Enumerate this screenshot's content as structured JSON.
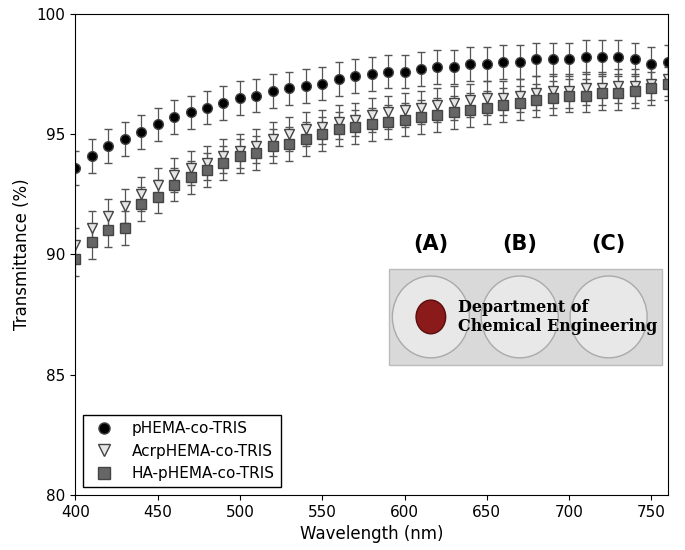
{
  "chart_data": {
    "type": "scatter",
    "x_label": "Wavelength (nm)",
    "y_label": "Transmittance (%)",
    "x": [
      400,
      410,
      420,
      430,
      440,
      450,
      460,
      470,
      480,
      490,
      500,
      510,
      520,
      530,
      540,
      550,
      560,
      570,
      580,
      590,
      600,
      610,
      620,
      630,
      640,
      650,
      660,
      670,
      680,
      690,
      700,
      710,
      720,
      730,
      740,
      750,
      760
    ],
    "series": [
      {
        "name": "pHEMA-co-TRIS",
        "color": "#000000",
        "marker": "circle",
        "values": [
          93.6,
          94.1,
          94.5,
          94.8,
          95.1,
          95.4,
          95.7,
          95.9,
          96.1,
          96.3,
          96.5,
          96.6,
          96.8,
          96.9,
          97.0,
          97.1,
          97.3,
          97.4,
          97.5,
          97.6,
          97.6,
          97.7,
          97.8,
          97.8,
          97.9,
          97.9,
          98.0,
          98.0,
          98.1,
          98.1,
          98.1,
          98.2,
          98.2,
          98.2,
          98.1,
          97.9,
          98.0
        ],
        "errors": [
          0.7,
          0.7,
          0.7,
          0.7,
          0.7,
          0.7,
          0.7,
          0.7,
          0.7,
          0.7,
          0.7,
          0.7,
          0.7,
          0.7,
          0.7,
          0.7,
          0.7,
          0.7,
          0.7,
          0.7,
          0.7,
          0.7,
          0.7,
          0.7,
          0.7,
          0.7,
          0.7,
          0.7,
          0.7,
          0.7,
          0.7,
          0.7,
          0.7,
          0.7,
          0.7,
          0.7,
          0.7
        ]
      },
      {
        "name": "AcrpHEMA-co-TRIS",
        "color": "#e6e6e6",
        "marker": "triangle_down",
        "values": [
          90.4,
          91.1,
          91.6,
          92.0,
          92.5,
          92.9,
          93.3,
          93.6,
          93.8,
          94.1,
          94.3,
          94.5,
          94.8,
          95.0,
          95.2,
          95.3,
          95.5,
          95.6,
          95.8,
          95.9,
          96.0,
          96.1,
          96.2,
          96.3,
          96.4,
          96.5,
          96.5,
          96.6,
          96.7,
          96.8,
          96.8,
          96.9,
          96.9,
          97.0,
          97.0,
          97.1,
          97.3
        ],
        "errors": [
          0.7,
          0.7,
          0.7,
          0.7,
          0.7,
          0.7,
          0.7,
          0.7,
          0.7,
          0.7,
          0.7,
          0.7,
          0.7,
          0.7,
          0.7,
          0.7,
          0.7,
          0.7,
          0.7,
          0.7,
          0.7,
          0.7,
          0.7,
          0.7,
          0.7,
          0.7,
          0.7,
          0.7,
          0.7,
          0.7,
          0.7,
          0.7,
          0.7,
          0.7,
          0.7,
          0.7,
          0.7
        ]
      },
      {
        "name": "HA-pHEMA-co-TRIS",
        "color": "#666666",
        "marker": "square",
        "values": [
          89.8,
          90.5,
          91.0,
          91.1,
          92.1,
          92.4,
          92.9,
          93.2,
          93.5,
          93.8,
          94.1,
          94.2,
          94.5,
          94.6,
          94.8,
          95.0,
          95.2,
          95.3,
          95.4,
          95.5,
          95.6,
          95.7,
          95.8,
          95.9,
          96.0,
          96.1,
          96.2,
          96.3,
          96.4,
          96.5,
          96.6,
          96.6,
          96.7,
          96.7,
          96.8,
          96.9,
          97.1
        ],
        "errors": [
          0.7,
          0.7,
          0.7,
          0.7,
          0.7,
          0.7,
          0.7,
          0.7,
          0.7,
          0.7,
          0.7,
          0.7,
          0.7,
          0.7,
          0.7,
          0.7,
          0.7,
          0.7,
          0.7,
          0.7,
          0.7,
          0.7,
          0.7,
          0.7,
          0.7,
          0.7,
          0.7,
          0.7,
          0.7,
          0.7,
          0.7,
          0.7,
          0.7,
          0.7,
          0.7,
          0.7,
          0.7
        ]
      }
    ],
    "xlim": [
      400,
      760
    ],
    "xticks": [
      400,
      450,
      500,
      550,
      600,
      650,
      700,
      750
    ],
    "ylim": [
      80,
      100
    ],
    "yticks": [
      80,
      85,
      90,
      95,
      100
    ],
    "legend": "lower left",
    "annotations": [
      "(A)",
      "(B)",
      "(C)"
    ],
    "inset_text": [
      "Department of",
      "Chemical Engineering"
    ]
  }
}
